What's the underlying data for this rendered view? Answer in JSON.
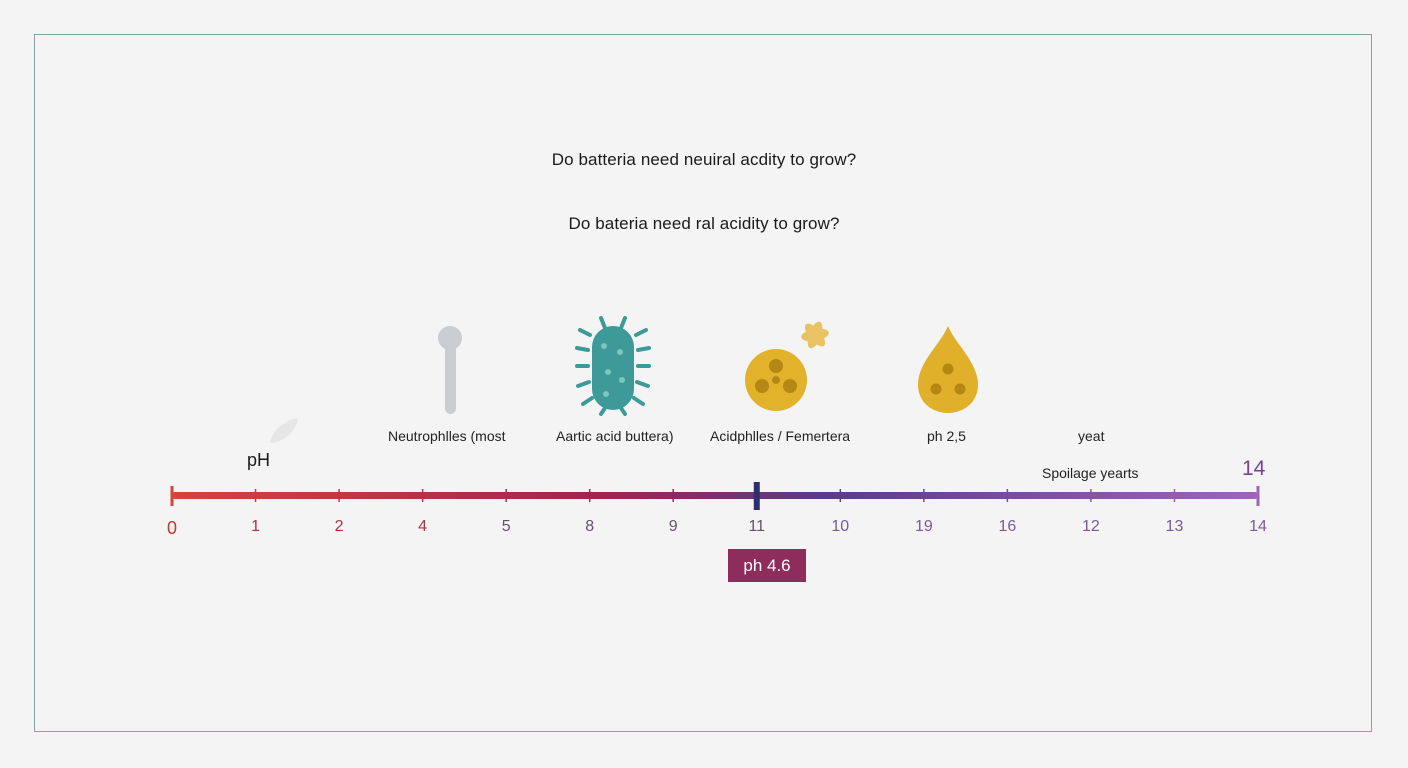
{
  "questions": [
    "Do batteria need neuiral acdity to grow?",
    "Do bateria need ral acidity to grow?"
  ],
  "organisms": [
    {
      "label": "Neutrophlles (most",
      "icon": "rod-bacterium-icon",
      "color": "#c9cdd1"
    },
    {
      "label": "Aartic acid buttera)",
      "icon": "flagellated-bacterium-icon",
      "color": "#3d9a98"
    },
    {
      "label": "Acidphlles / Femertera",
      "icon": "coccus-cluster-icon",
      "color": "#e2b22a"
    },
    {
      "label": "ph 2,5",
      "icon": "yeast-drop-icon",
      "color": "#e0b02a"
    },
    {
      "label": "yeat",
      "icon": "",
      "color": ""
    }
  ],
  "spoilage_label": "Spoilage yearts",
  "ph_label": "pH",
  "scale_end_label": "14",
  "scale": {
    "tick_labels": [
      "0",
      "1",
      "2",
      "4",
      "5",
      "8",
      "9",
      "11",
      "10",
      "19",
      "16",
      "12",
      "13",
      "14"
    ],
    "gradient_colors": [
      "#d8433a",
      "#9e2550",
      "#5a3a8a",
      "#a065b8"
    ],
    "marker_tick_index": 7
  },
  "marker_label": "ph 4.6"
}
